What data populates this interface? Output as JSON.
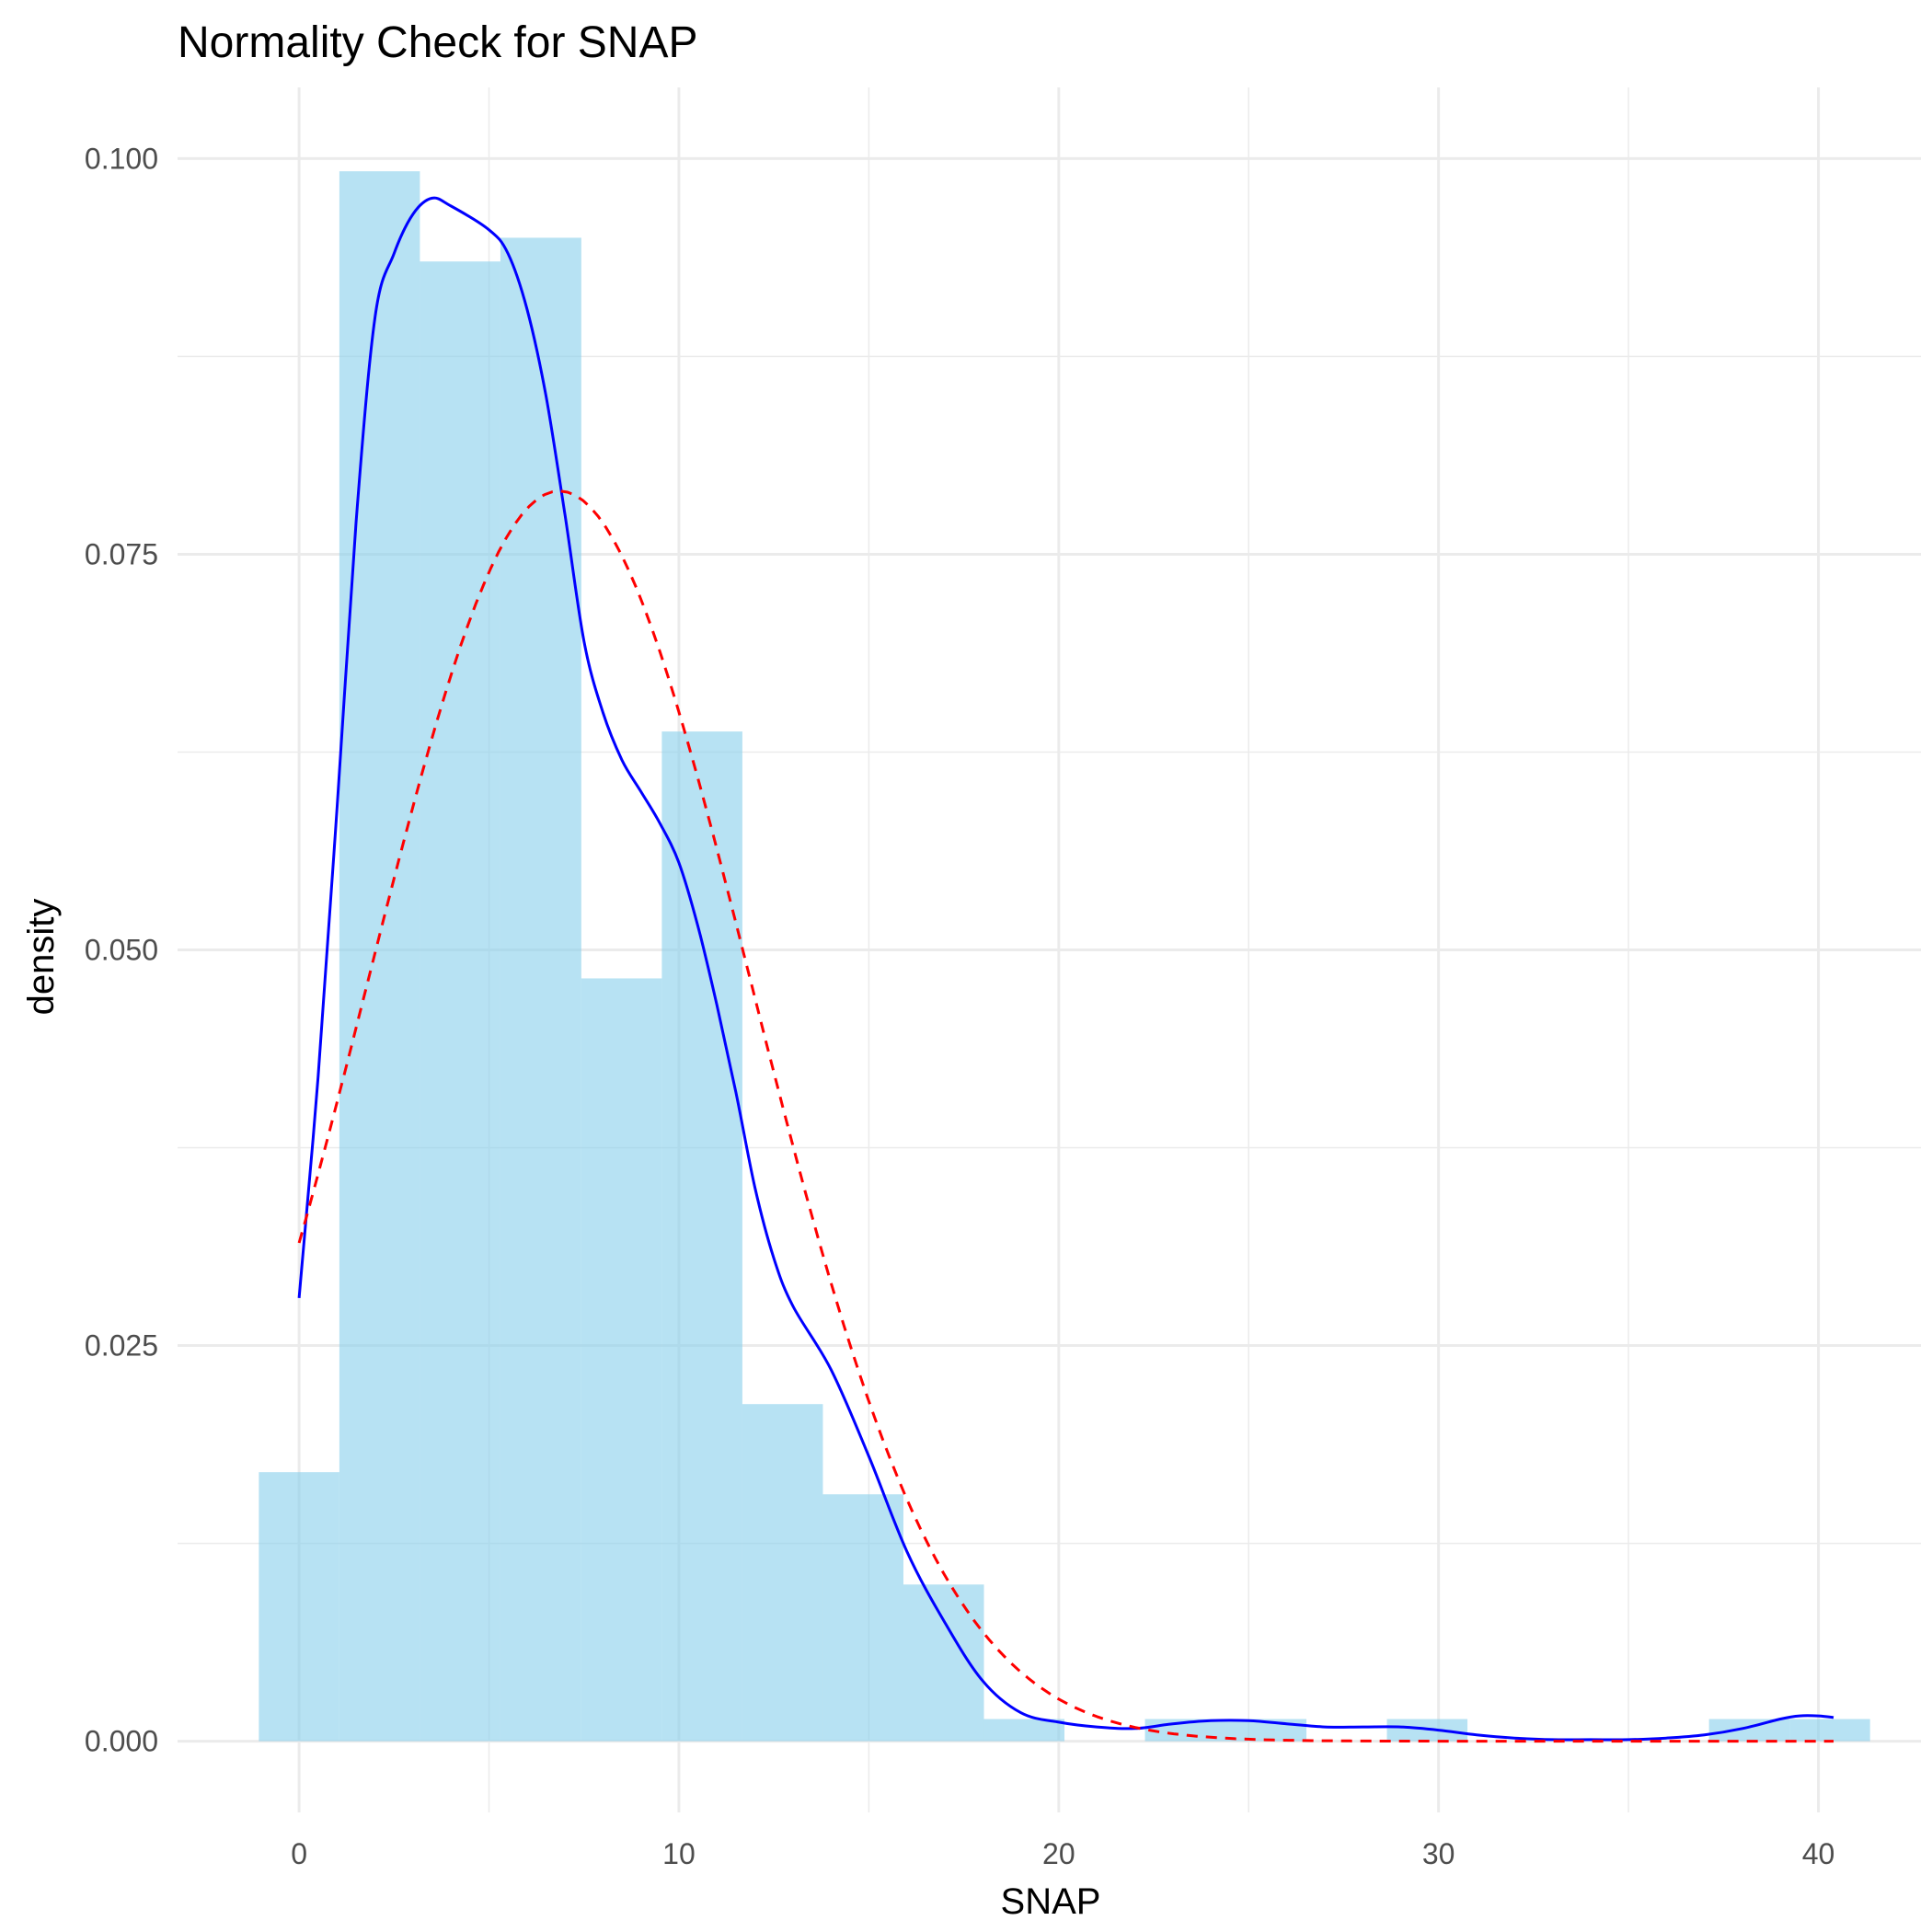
{
  "chart_data": {
    "type": "bar",
    "title": "Normality Check for SNAP",
    "xlabel": "SNAP",
    "ylabel": "density",
    "xlim": [
      -3.2,
      42.7
    ],
    "ylim": [
      -0.0045,
      0.1045
    ],
    "x_ticks": [
      0,
      10,
      20,
      30,
      40
    ],
    "x_tick_labels": [
      "0",
      "10",
      "20",
      "30",
      "40"
    ],
    "y_ticks": [
      0,
      0.025,
      0.05,
      0.075,
      0.1
    ],
    "y_tick_labels": [
      "0.000",
      "0.025",
      "0.050",
      "0.075",
      "0.100"
    ],
    "x_minor_ticks": [
      5,
      15,
      25,
      35
    ],
    "y_minor_ticks": [
      0.0125,
      0.0375,
      0.0625,
      0.0875
    ],
    "grid": true,
    "histogram": {
      "fill": "#87ceeb",
      "opacity": 0.6,
      "bins": [
        {
          "x0": -1.06,
          "x1": 1.06,
          "density": 0.017
        },
        {
          "x0": 1.06,
          "x1": 3.18,
          "density": 0.0992
        },
        {
          "x0": 3.18,
          "x1": 5.3,
          "density": 0.0935
        },
        {
          "x0": 5.3,
          "x1": 7.43,
          "density": 0.095
        },
        {
          "x0": 7.43,
          "x1": 9.55,
          "density": 0.0482
        },
        {
          "x0": 9.55,
          "x1": 11.67,
          "density": 0.0638
        },
        {
          "x0": 11.67,
          "x1": 13.79,
          "density": 0.0213
        },
        {
          "x0": 13.79,
          "x1": 15.91,
          "density": 0.0156
        },
        {
          "x0": 15.91,
          "x1": 18.03,
          "density": 0.0099
        },
        {
          "x0": 18.03,
          "x1": 20.15,
          "density": 0.0014
        },
        {
          "x0": 20.15,
          "x1": 22.27,
          "density": 0
        },
        {
          "x0": 22.27,
          "x1": 24.4,
          "density": 0.0014
        },
        {
          "x0": 24.4,
          "x1": 26.52,
          "density": 0.0014
        },
        {
          "x0": 26.52,
          "x1": 28.64,
          "density": 0
        },
        {
          "x0": 28.64,
          "x1": 30.76,
          "density": 0.0014
        },
        {
          "x0": 30.76,
          "x1": 32.88,
          "density": 0
        },
        {
          "x0": 32.88,
          "x1": 35.0,
          "density": 0
        },
        {
          "x0": 35.0,
          "x1": 37.12,
          "density": 0
        },
        {
          "x0": 37.12,
          "x1": 39.24,
          "density": 0.0014
        },
        {
          "x0": 39.24,
          "x1": 41.36,
          "density": 0.0014
        }
      ]
    },
    "series": [
      {
        "type": "line",
        "color": "#0000ff",
        "dashed": false,
        "x": [
          0,
          0.5,
          1.0,
          1.5,
          2.0,
          2.5,
          3.0,
          3.5,
          4.0,
          5.0,
          5.5,
          6.0,
          6.5,
          7.0,
          7.5,
          8.0,
          8.5,
          9.0,
          9.5,
          10.0,
          10.5,
          11.0,
          11.5,
          12.0,
          12.5,
          13.0,
          14.0,
          15.0,
          16.0,
          17.0,
          18.0,
          19.0,
          20.0,
          21.0,
          22.0,
          23.0,
          24.0,
          25.0,
          26.0,
          27.0,
          28.0,
          29.0,
          30.0,
          31.0,
          32.0,
          33.0,
          34.0,
          35.0,
          36.0,
          37.0,
          38.0,
          39.0,
          39.5,
          40.0,
          40.4
        ],
        "y": [
          0.028,
          0.042,
          0.059,
          0.077,
          0.09,
          0.094,
          0.0965,
          0.0975,
          0.097,
          0.0955,
          0.094,
          0.0905,
          0.085,
          0.0775,
          0.0695,
          0.065,
          0.062,
          0.06,
          0.058,
          0.0555,
          0.0515,
          0.0465,
          0.041,
          0.035,
          0.0305,
          0.0275,
          0.0235,
          0.018,
          0.012,
          0.0075,
          0.0038,
          0.0018,
          0.0012,
          0.0009,
          0.0008,
          0.0011,
          0.0013,
          0.0013,
          0.0011,
          0.0009,
          0.0009,
          0.0009,
          0.0007,
          0.0004,
          0.0002,
          0.0001,
          0.0001,
          0.0001,
          0.0002,
          0.0004,
          0.0008,
          0.0014,
          0.0016,
          0.0016,
          0.0015
        ]
      },
      {
        "type": "line",
        "color": "#ff0000",
        "dashed": true,
        "normal": {
          "mean": 6.85,
          "sd": 5.05
        },
        "x_range": [
          0,
          40.4
        ]
      }
    ]
  }
}
